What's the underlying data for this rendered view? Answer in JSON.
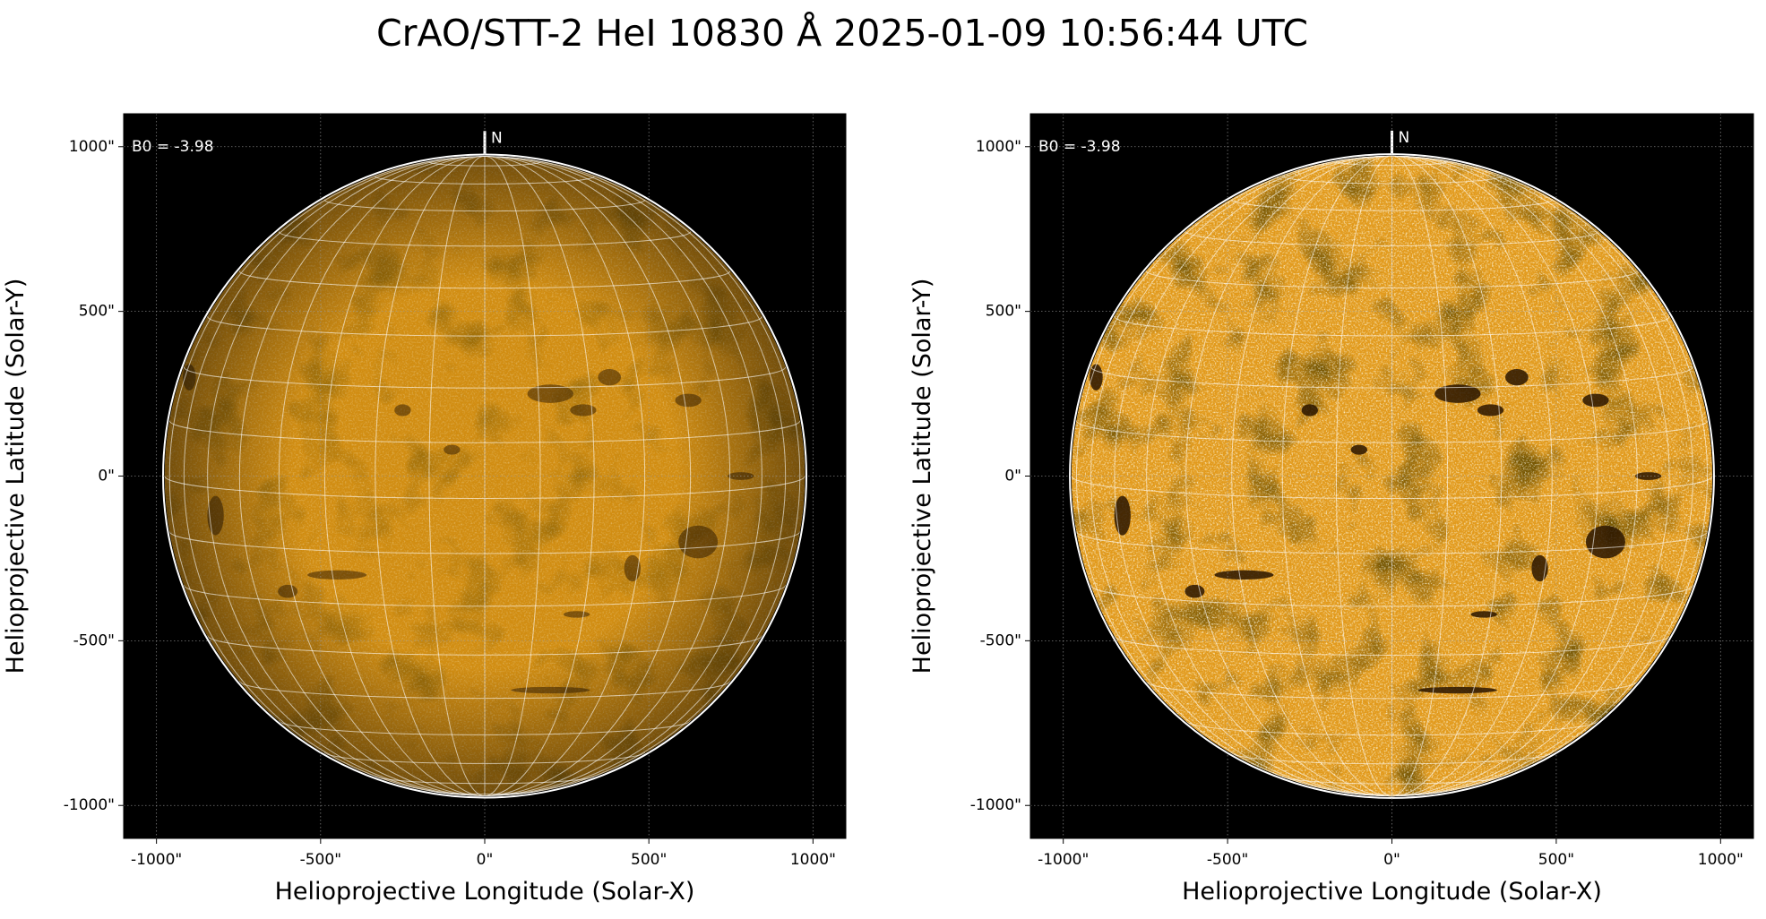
{
  "title": "CrAO/STT-2 HeI 10830 Å 2025-01-09 10:56:44 UTC",
  "chart_data": [
    {
      "type": "image",
      "xlabel": "Helioprojective Longitude (Solar-X)",
      "ylabel": "Helioprojective Latitude (Solar-Y)",
      "annotation": "B0 = -3.98",
      "north_label": "N",
      "color": "#d18d12",
      "contrast": "normal",
      "xlim": [
        -1100,
        1100
      ],
      "ylim": [
        -1100,
        1100
      ],
      "xticks": [
        {
          "value": -1000,
          "label": "-1000\""
        },
        {
          "value": -500,
          "label": "-500\""
        },
        {
          "value": 0,
          "label": "0\""
        },
        {
          "value": 500,
          "label": "500\""
        },
        {
          "value": 1000,
          "label": "1000\""
        }
      ],
      "yticks": [
        {
          "value": -1000,
          "label": "-1000\""
        },
        {
          "value": -500,
          "label": "-500\""
        },
        {
          "value": 0,
          "label": "0\""
        },
        {
          "value": 500,
          "label": "500\""
        },
        {
          "value": 1000,
          "label": "1000\""
        }
      ],
      "grid": true
    },
    {
      "type": "image",
      "xlabel": "Helioprojective Longitude (Solar-X)",
      "ylabel": "Helioprojective Latitude (Solar-Y)",
      "annotation": "B0 = -3.98",
      "north_label": "N",
      "color": "#e29a1c",
      "contrast": "high",
      "xlim": [
        -1100,
        1100
      ],
      "ylim": [
        -1100,
        1100
      ],
      "xticks": [
        {
          "value": -1000,
          "label": "-1000\""
        },
        {
          "value": -500,
          "label": "-500\""
        },
        {
          "value": 0,
          "label": "0\""
        },
        {
          "value": 500,
          "label": "500\""
        },
        {
          "value": 1000,
          "label": "1000\""
        }
      ],
      "yticks": [
        {
          "value": -1000,
          "label": "-1000\""
        },
        {
          "value": -500,
          "label": "-500\""
        },
        {
          "value": 0,
          "label": "0\""
        },
        {
          "value": 500,
          "label": "500\""
        },
        {
          "value": 1000,
          "label": "1000\""
        }
      ],
      "grid": true
    }
  ]
}
